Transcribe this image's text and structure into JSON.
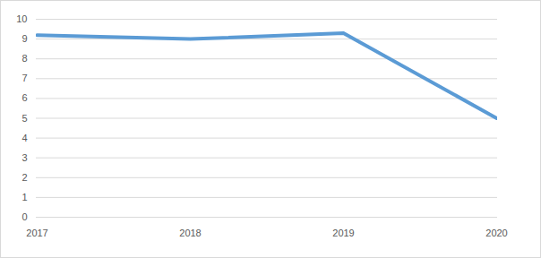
{
  "chart_data": {
    "type": "line",
    "categories": [
      "2017",
      "2018",
      "2019",
      "2020"
    ],
    "values": [
      9.2,
      9.0,
      9.3,
      5.0
    ],
    "color": "#5b9bd5",
    "ylim": [
      0,
      10
    ],
    "yticks": [
      0,
      1,
      2,
      3,
      4,
      5,
      6,
      7,
      8,
      9,
      10
    ],
    "grid": true
  }
}
